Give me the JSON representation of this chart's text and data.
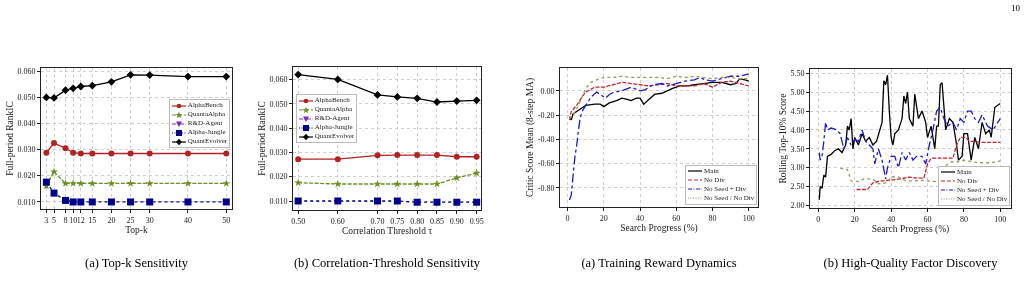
{
  "chart_data": [
    {
      "type": "line",
      "title": "(a) Top-k Sensitivity",
      "xlabel": "Top-k",
      "ylabel": "Full-period RankIC",
      "x": [
        3,
        5,
        8,
        10,
        12,
        15,
        20,
        25,
        30,
        40,
        50
      ],
      "xlim": [
        1.6,
        51.5
      ],
      "xticks": [
        {
          "value": 3,
          "label": "3"
        },
        {
          "value": 5,
          "label": "5"
        },
        {
          "value": 8,
          "label": "8"
        },
        {
          "value": 10,
          "label": "10"
        },
        {
          "value": 12,
          "label": "12"
        },
        {
          "value": 15,
          "label": "15"
        },
        {
          "value": 20,
          "label": "20"
        },
        {
          "value": 25,
          "label": "25"
        },
        {
          "value": 30,
          "label": "30"
        },
        {
          "value": 40,
          "label": "40"
        },
        {
          "value": 50,
          "label": "50"
        }
      ],
      "ylim": [
        0.0072,
        0.0613
      ],
      "yticks": [
        {
          "value": 0.01,
          "label": "0.010"
        },
        {
          "value": 0.02,
          "label": "0.020"
        },
        {
          "value": 0.03,
          "label": "0.030"
        },
        {
          "value": 0.04,
          "label": "0.040"
        },
        {
          "value": 0.05,
          "label": "0.050"
        },
        {
          "value": 0.06,
          "label": "0.060"
        }
      ],
      "grid": true,
      "legend": "right",
      "series": [
        {
          "name": "AlphaBench",
          "color": "#b22222",
          "marker": "circle",
          "line_style": "solid",
          "values": [
            0.0288,
            0.0325,
            0.0305,
            0.0288,
            0.0285,
            0.0285,
            0.0285,
            0.0285,
            0.0285,
            0.0285,
            0.0285
          ]
        },
        {
          "name": "QuantaAlpha",
          "color": "#6b8e23",
          "marker": "star",
          "line_style": "dashed",
          "values": [
            0.016,
            0.0215,
            0.017,
            0.017,
            0.017,
            0.017,
            0.017,
            0.017,
            0.017,
            0.017,
            0.017
          ]
        },
        {
          "name": "R&D-Agent",
          "color": "#7b2fbe",
          "marker": "triangle",
          "line_style": "dashdot",
          "values": [
            null,
            null,
            null,
            null,
            null,
            null,
            null,
            null,
            null,
            null,
            null
          ]
        },
        {
          "name": "Alpha-Jungle",
          "color": "#00008b",
          "marker": "square",
          "line_style": "dotted",
          "values": [
            0.0175,
            0.0133,
            0.0105,
            0.0099,
            0.0099,
            0.0099,
            0.0099,
            0.0099,
            0.0099,
            0.0099,
            0.0099
          ]
        },
        {
          "name": "QuantEvolver",
          "color": "#000000",
          "marker": "diamond",
          "line_style": "solid",
          "values": [
            0.05,
            0.0498,
            0.0528,
            0.0535,
            0.0542,
            0.0545,
            0.056,
            0.0587,
            0.0586,
            0.058,
            0.058
          ]
        }
      ]
    },
    {
      "type": "line",
      "title": "(b) Correlation-Threshold Sensitivity",
      "xlabel": "Correlation Threshold τ",
      "ylabel": "Full-period RankIC",
      "x": [
        0.5,
        0.6,
        0.7,
        0.75,
        0.8,
        0.85,
        0.9,
        0.95
      ],
      "xlim": [
        0.487,
        0.961
      ],
      "xticks": [
        {
          "value": 0.5,
          "label": "0.50"
        },
        {
          "value": 0.6,
          "label": "0.60"
        },
        {
          "value": 0.7,
          "label": "0.70"
        },
        {
          "value": 0.75,
          "label": "0.75"
        },
        {
          "value": 0.8,
          "label": "0.80"
        },
        {
          "value": 0.85,
          "label": "0.85"
        },
        {
          "value": 0.9,
          "label": "0.90"
        },
        {
          "value": 0.95,
          "label": "0.95"
        }
      ],
      "ylim": [
        0.0063,
        0.0651
      ],
      "yticks": [
        {
          "value": 0.01,
          "label": "0.010"
        },
        {
          "value": 0.02,
          "label": "0.020"
        },
        {
          "value": 0.03,
          "label": "0.030"
        },
        {
          "value": 0.04,
          "label": "0.040"
        },
        {
          "value": 0.05,
          "label": "0.050"
        },
        {
          "value": 0.06,
          "label": "0.060"
        }
      ],
      "grid": true,
      "legend": "left",
      "series": [
        {
          "name": "AlphaBench",
          "color": "#b22222",
          "marker": "circle",
          "line_style": "solid",
          "values": [
            0.0272,
            0.0272,
            0.0288,
            0.0289,
            0.0289,
            0.0289,
            0.0282,
            0.0282
          ]
        },
        {
          "name": "QuantaAlpha",
          "color": "#6b8e23",
          "marker": "star",
          "line_style": "dashed",
          "values": [
            0.0175,
            0.017,
            0.017,
            0.017,
            0.017,
            0.017,
            0.0195,
            0.0215
          ]
        },
        {
          "name": "R&D-Agent",
          "color": "#7b2fbe",
          "marker": "triangle",
          "line_style": "dashdot",
          "values": [
            null,
            null,
            null,
            null,
            null,
            null,
            null,
            null
          ]
        },
        {
          "name": "Alpha-Jungle",
          "color": "#00008b",
          "marker": "square",
          "line_style": "dotted",
          "values": [
            0.01,
            0.01,
            0.01,
            0.01,
            0.0095,
            0.0095,
            0.0095,
            0.0095
          ]
        },
        {
          "name": "QuantEvolver",
          "color": "#000000",
          "marker": "diamond",
          "line_style": "solid",
          "values": [
            0.062,
            0.06,
            0.0536,
            0.0528,
            0.0522,
            0.0507,
            0.0511,
            0.0514
          ]
        }
      ]
    },
    {
      "type": "line",
      "title": "(a) Training Reward Dynamics",
      "xlabel": "Search Progress (%)",
      "ylabel": "Critic Score Mean (8-step MA)",
      "xlim": [
        -4.2,
        105.1
      ],
      "xticks": [
        0,
        20,
        40,
        60,
        80,
        100
      ],
      "ylim": [
        -0.957,
        0.188
      ],
      "yticks": [
        {
          "value": -0.8,
          "label": "-0.80"
        },
        {
          "value": -0.6,
          "label": "-0.60"
        },
        {
          "value": -0.4,
          "label": "-0.40"
        },
        {
          "value": -0.2,
          "label": "-0.20"
        },
        {
          "value": 0,
          "label": "0.00"
        }
      ],
      "grid": true,
      "legend": "bottom right",
      "series": [
        {
          "name": "Main",
          "color": "#000000",
          "line_style": "solid",
          "x": [
            1,
            2,
            3,
            6,
            10,
            15,
            18,
            20,
            23,
            27,
            30,
            33,
            35,
            38,
            40,
            42,
            45,
            48,
            52,
            55,
            58,
            62,
            66,
            70,
            75,
            80,
            85,
            90,
            93,
            95,
            98,
            100
          ],
          "values": [
            -0.22,
            -0.24,
            -0.19,
            -0.16,
            -0.12,
            -0.11,
            -0.11,
            -0.13,
            -0.1,
            -0.08,
            -0.06,
            -0.07,
            -0.08,
            -0.06,
            -0.06,
            -0.11,
            -0.07,
            -0.03,
            -0.02,
            0.0,
            0.02,
            0.04,
            0.04,
            0.05,
            0.06,
            0.07,
            0.07,
            0.05,
            0.06,
            0.1,
            0.09,
            0.08
          ]
        },
        {
          "name": "No Div",
          "color": "#c0272d",
          "line_style": "dashed",
          "x": [
            1,
            2,
            5,
            8,
            10,
            15,
            20,
            25,
            30,
            35,
            40,
            45,
            50,
            55,
            60,
            65,
            70,
            75,
            80,
            85,
            90,
            95,
            100
          ],
          "values": [
            -0.24,
            -0.17,
            -0.12,
            -0.05,
            -0.01,
            0.03,
            0.03,
            0.05,
            0.07,
            0.06,
            0.05,
            0.04,
            0.05,
            0.06,
            0.04,
            0.04,
            0.04,
            0.06,
            0.03,
            0.07,
            0.08,
            0.06,
            0.04
          ]
        },
        {
          "name": "No Seed + Div",
          "color": "#1a1acd",
          "line_style": "dashdot",
          "x": [
            1,
            2,
            3,
            4,
            5,
            6,
            7,
            8,
            10,
            13,
            16,
            18,
            21,
            23,
            26,
            30,
            35,
            40,
            43,
            47,
            52,
            55,
            60,
            65,
            70,
            73,
            76,
            80,
            85,
            90,
            95,
            100
          ],
          "values": [
            -0.9,
            -0.86,
            -0.7,
            -0.55,
            -0.45,
            -0.32,
            -0.22,
            -0.17,
            -0.12,
            -0.05,
            -0.01,
            -0.03,
            -0.06,
            -0.03,
            -0.01,
            0.0,
            0.03,
            0.0,
            0.01,
            0.05,
            0.06,
            0.04,
            0.06,
            0.08,
            0.09,
            0.11,
            0.09,
            0.08,
            0.1,
            0.12,
            0.12,
            0.14
          ]
        },
        {
          "name": "No Seed / No Div",
          "color": "#9a9a5a",
          "line_style": "dotted",
          "x": [
            1,
            3,
            5,
            8,
            10,
            13,
            16,
            20,
            25,
            30,
            35,
            40,
            45,
            50,
            55,
            60,
            65,
            70,
            75,
            80,
            85,
            90,
            95,
            100
          ],
          "values": [
            -0.23,
            -0.2,
            -0.15,
            -0.05,
            0.02,
            0.07,
            0.09,
            0.11,
            0.11,
            0.12,
            0.11,
            0.11,
            0.11,
            0.11,
            0.1,
            0.12,
            0.11,
            0.12,
            0.11,
            0.1,
            0.11,
            0.11,
            0.1,
            0.1
          ]
        }
      ]
    },
    {
      "type": "line",
      "title": "(b) High-Quality Factor Discovery",
      "xlabel": "Search Progress (%)",
      "ylabel": "Rolling Top-10% Score",
      "annotations": [
        "10"
      ],
      "xlim": [
        -4.6,
        105.9
      ],
      "xticks": [
        0,
        20,
        40,
        60,
        80,
        100
      ],
      "ylim": [
        1.93,
        5.615
      ],
      "yticks": [
        {
          "value": 2,
          "label": "2.00"
        },
        {
          "value": 2.5,
          "label": "2.50"
        },
        {
          "value": 3,
          "label": "3.00"
        },
        {
          "value": 3.5,
          "label": "3.50"
        },
        {
          "value": 4,
          "label": "4.00"
        },
        {
          "value": 4.5,
          "label": "4.50"
        },
        {
          "value": 5,
          "label": "5.00"
        },
        {
          "value": 5.5,
          "label": "5.50"
        }
      ],
      "grid": true,
      "legend": "bottom right",
      "series": [
        {
          "name": "Main",
          "color": "#000000",
          "line_style": "solid",
          "x": [
            0.5,
            1,
            2,
            3,
            4,
            5,
            7,
            9,
            11,
            13,
            15,
            16,
            17,
            18,
            19,
            20,
            22,
            24,
            26,
            28,
            30,
            32,
            35,
            36,
            37,
            38,
            39,
            40,
            41,
            42,
            44,
            46,
            47,
            48,
            49,
            50,
            52,
            53,
            55,
            57,
            59,
            60,
            62,
            64,
            65,
            66,
            67,
            68,
            70,
            72,
            74,
            76,
            77,
            79,
            80,
            82,
            84,
            86,
            88,
            90,
            92,
            94,
            95,
            97,
            100
          ],
          "values": [
            2.15,
            2.5,
            2.45,
            2.8,
            2.75,
            3.3,
            3.35,
            3.45,
            3.5,
            3.4,
            3.6,
            4.1,
            4.0,
            4.3,
            3.5,
            3.8,
            3.6,
            3.9,
            3.7,
            3.8,
            3.6,
            3.7,
            4.2,
            5.3,
            5.2,
            5.45,
            4.5,
            3.8,
            3.6,
            3.9,
            4.0,
            4.3,
            4.9,
            4.7,
            5.0,
            4.3,
            4.1,
            4.95,
            4.3,
            4.5,
            4.2,
            3.8,
            4.1,
            3.5,
            4.1,
            4.1,
            5.2,
            5.25,
            4.0,
            4.3,
            4.2,
            3.6,
            3.2,
            3.3,
            3.9,
            3.9,
            3.2,
            3.8,
            3.5,
            4.2,
            3.9,
            4.0,
            3.8,
            4.6,
            4.7
          ]
        },
        {
          "name": "No Div",
          "color": "#c0272d",
          "line_style": "dashed",
          "x": [
            21,
            27,
            30,
            35,
            40,
            45,
            50,
            55,
            58,
            60,
            62,
            70,
            74,
            76,
            78,
            81,
            83,
            90,
            100
          ],
          "values": [
            2.42,
            2.42,
            2.6,
            2.65,
            2.67,
            2.7,
            2.75,
            2.72,
            2.72,
            3.1,
            3.25,
            3.25,
            3.25,
            3.6,
            3.8,
            3.8,
            3.7,
            3.67,
            3.67
          ]
        },
        {
          "name": "No Seed + Div",
          "color": "#1a1acd",
          "line_style": "dashdot",
          "x": [
            0.5,
            1,
            2,
            3,
            4,
            5,
            7,
            10,
            12,
            14,
            16,
            18,
            20,
            22,
            24,
            26,
            28,
            30,
            31,
            33,
            35,
            37,
            38,
            40,
            42,
            44,
            46,
            48,
            50,
            52,
            54,
            57,
            59,
            61,
            63,
            65,
            67,
            69,
            71,
            74,
            76,
            78,
            80,
            82,
            84,
            86,
            88,
            90,
            93,
            96,
            100
          ],
          "values": [
            3.4,
            3.2,
            3.3,
            3.7,
            4.2,
            4.0,
            4.05,
            4.0,
            3.9,
            3.5,
            3.8,
            3.6,
            3.75,
            3.7,
            4.0,
            3.7,
            3.6,
            3.5,
            3.1,
            3.5,
            3.2,
            2.7,
            3.0,
            3.3,
            3.3,
            3.0,
            3.4,
            3.2,
            3.4,
            3.2,
            3.3,
            3.3,
            3.1,
            3.6,
            4.0,
            4.5,
            4.6,
            4.3,
            4.1,
            4.2,
            4.0,
            4.3,
            4.2,
            4.5,
            4.5,
            4.3,
            4.2,
            4.4,
            4.1,
            4.0,
            4.3
          ]
        },
        {
          "name": "No Seed / No Div",
          "color": "#9a9a5a",
          "line_style": "dotted",
          "x": [
            12,
            16,
            18,
            22,
            25,
            30,
            33,
            38,
            40,
            44,
            48,
            52,
            58,
            62,
            65,
            67,
            70,
            73,
            76,
            80,
            85,
            90,
            95,
            100
          ],
          "values": [
            2.98,
            2.95,
            2.65,
            2.63,
            2.7,
            2.7,
            2.57,
            2.6,
            2.76,
            2.75,
            2.65,
            2.65,
            2.66,
            2.64,
            2.63,
            null,
            3.05,
            3.15,
            3.15,
            3.2,
            3.15,
            3.13,
            3.13,
            3.18
          ]
        }
      ]
    }
  ]
}
